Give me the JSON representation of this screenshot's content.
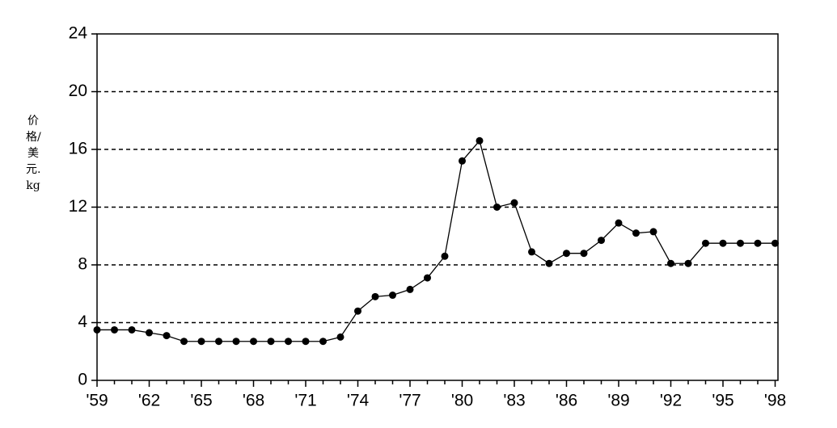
{
  "chart_data": {
    "type": "line",
    "y_label": "价格/美元.kg",
    "categories": [
      "'59",
      null,
      null,
      "'62",
      null,
      null,
      "'65",
      null,
      null,
      "'68",
      null,
      null,
      "'71",
      null,
      null,
      "'74",
      null,
      null,
      "'77",
      null,
      null,
      "'80",
      null,
      null,
      "'83",
      null,
      null,
      "'86",
      null,
      null,
      "'89",
      null,
      null,
      "'92",
      null,
      null,
      "'95",
      null,
      null,
      "'98"
    ],
    "values": [
      3.5,
      3.5,
      3.5,
      3.3,
      3.1,
      2.7,
      2.7,
      2.7,
      2.7,
      2.7,
      2.7,
      2.7,
      2.7,
      2.7,
      3.0,
      4.8,
      5.8,
      5.9,
      6.3,
      7.1,
      8.6,
      15.2,
      16.6,
      12.0,
      12.3,
      8.9,
      8.1,
      8.8,
      8.8,
      9.7,
      10.9,
      10.2,
      10.3,
      8.1,
      8.1,
      9.5,
      9.5,
      9.5,
      9.5,
      9.5
    ],
    "color": "#000000",
    "ylim": [
      0,
      24
    ],
    "yticks": [
      0,
      4,
      8,
      12,
      16,
      20,
      24
    ],
    "grid": true
  }
}
